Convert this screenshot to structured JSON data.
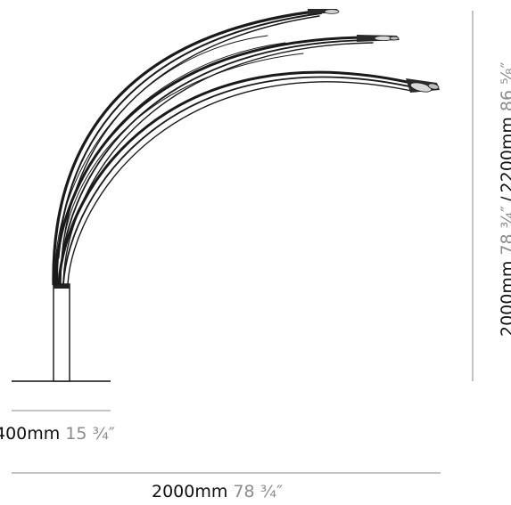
{
  "dimensions": {
    "base_width": {
      "metric": "400mm",
      "imperial": "15 ¾″"
    },
    "total_width": {
      "metric": "2000mm",
      "imperial": "78 ¾″"
    },
    "height": {
      "metric_a": "2000mm",
      "imperial_a": "78 ¾″",
      "separator": "/",
      "metric_b": "2200mm",
      "imperial_b": "86 ⅝″"
    }
  },
  "colors": {
    "lamp_stroke": "#1a1a1a",
    "dimension_line": "#8a8a8a",
    "imperial_text": "#8c8c8c"
  }
}
